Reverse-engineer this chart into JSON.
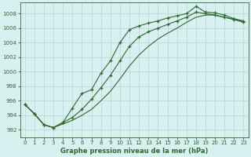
{
  "line1_x": [
    0,
    1,
    2,
    3,
    4,
    5,
    6,
    7,
    8,
    9,
    10,
    11,
    12,
    13,
    14,
    15,
    16,
    17,
    18,
    19,
    20,
    21,
    22,
    23
  ],
  "line1_y": [
    995.5,
    994.2,
    992.7,
    992.3,
    993.0,
    995.0,
    997.0,
    997.5,
    999.8,
    1001.5,
    1004.0,
    1005.8,
    1006.3,
    1006.7,
    1007.0,
    1007.4,
    1007.7,
    1008.0,
    1009.0,
    1008.2,
    1008.1,
    1007.8,
    1007.3,
    1007.0
  ],
  "line2_x": [
    0,
    1,
    2,
    3,
    4,
    5,
    6,
    7,
    8,
    9,
    10,
    11,
    12,
    13,
    14,
    15,
    16,
    17,
    18,
    19,
    20,
    21,
    22,
    23
  ],
  "line2_y": [
    995.5,
    994.2,
    992.7,
    992.3,
    993.0,
    993.7,
    994.8,
    996.2,
    997.8,
    999.5,
    1001.5,
    1003.5,
    1004.8,
    1005.5,
    1006.0,
    1006.5,
    1007.0,
    1007.5,
    1008.2,
    1008.0,
    1007.8,
    1007.5,
    1007.2,
    1006.8
  ],
  "line3_x": [
    0,
    1,
    2,
    3,
    4,
    5,
    6,
    7,
    8,
    9,
    10,
    11,
    12,
    13,
    14,
    15,
    16,
    17,
    18,
    19,
    20,
    21,
    22,
    23
  ],
  "line3_y": [
    995.5,
    994.2,
    992.7,
    992.3,
    992.8,
    993.3,
    994.0,
    994.8,
    996.0,
    997.3,
    999.0,
    1000.8,
    1002.3,
    1003.5,
    1004.5,
    1005.3,
    1006.0,
    1006.8,
    1007.5,
    1007.8,
    1007.8,
    1007.5,
    1007.2,
    1006.9
  ],
  "line_color": "#2d6a2d",
  "bg_color": "#d8f0f0",
  "grid_color": "#b8d4d4",
  "xlabel": "Graphe pression niveau de la mer (hPa)",
  "ylim": [
    991.0,
    1009.5
  ],
  "xlim": [
    -0.5,
    23.5
  ],
  "yticks": [
    992,
    994,
    996,
    998,
    1000,
    1002,
    1004,
    1006,
    1008
  ],
  "xticks": [
    0,
    1,
    2,
    3,
    4,
    5,
    6,
    7,
    8,
    9,
    10,
    11,
    12,
    13,
    14,
    15,
    16,
    17,
    18,
    19,
    20,
    21,
    22,
    23
  ]
}
